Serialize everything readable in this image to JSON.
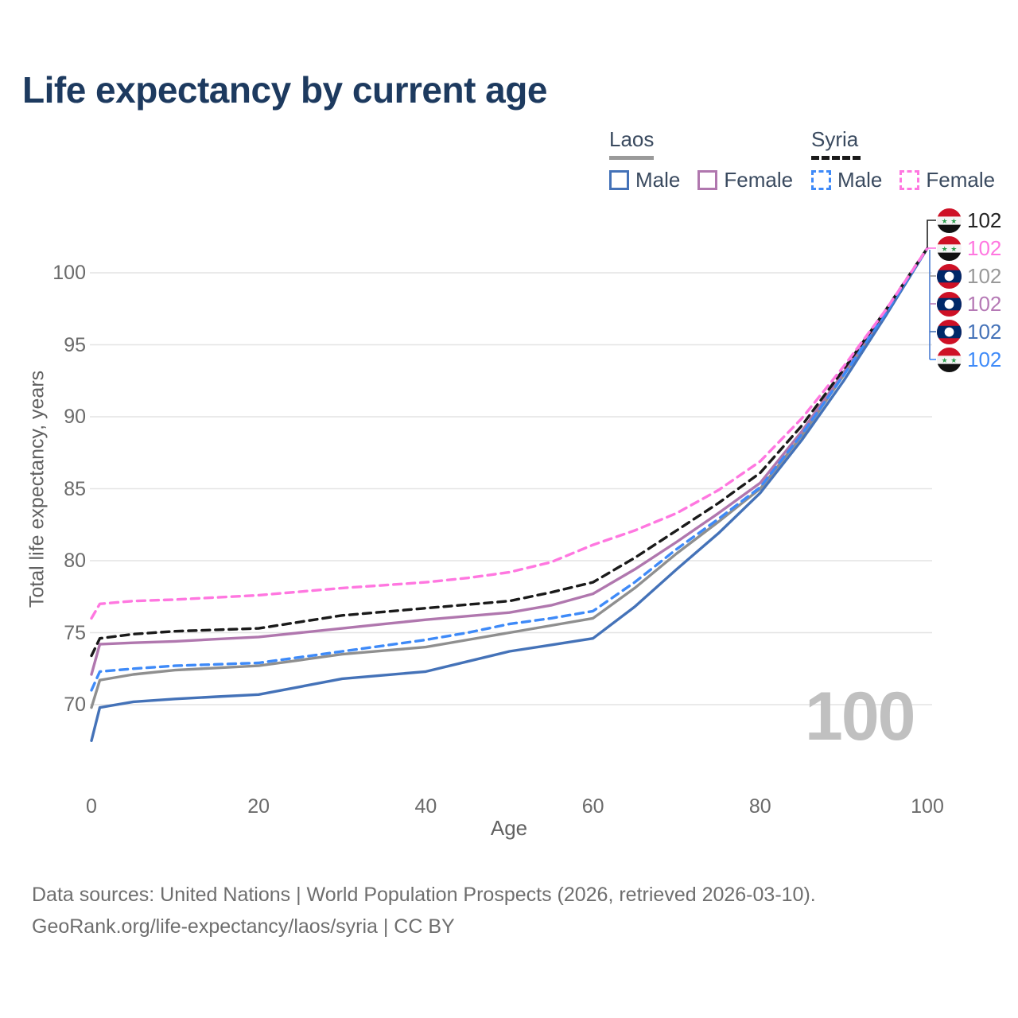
{
  "header": {
    "title": "Life expectancy by current age"
  },
  "legend": {
    "laos": {
      "label": "Laos",
      "male_label": "Male",
      "female_label": "Female"
    },
    "syria": {
      "label": "Syria",
      "male_label": "Male",
      "female_label": "Female"
    }
  },
  "plot": {
    "watermark": "100",
    "y_axis_label": "Total life expectancy, years",
    "x_axis_label": "Age"
  },
  "footer": {
    "line1": "Data sources: United Nations | World Population Prospects (2026, retrieved 2026-03-10).",
    "line2": "GeoRank.org/life-expectancy/laos/syria | CC BY"
  },
  "chart_data": {
    "type": "line",
    "title": "Life expectancy by current age",
    "xlabel": "Age",
    "ylabel": "Total life expectancy, years",
    "xlim": [
      0,
      100
    ],
    "ylim": [
      67,
      103
    ],
    "x_ticks": [
      0,
      20,
      40,
      60,
      80,
      100
    ],
    "y_ticks": [
      70,
      75,
      80,
      85,
      90,
      95,
      100
    ],
    "grid": "horizontal-only",
    "hovered_age": "100",
    "ages": [
      0,
      1,
      5,
      10,
      15,
      20,
      25,
      30,
      35,
      40,
      45,
      50,
      55,
      60,
      65,
      70,
      75,
      80,
      85,
      90,
      95,
      100
    ],
    "series": [
      {
        "id": "laos-male",
        "country": "Laos",
        "sex": "Male",
        "color": "#4472b8",
        "dash": "solid",
        "values": [
          67.5,
          69.8,
          70.2,
          70.4,
          70.55,
          70.7,
          71.25,
          71.8,
          72.05,
          72.3,
          73.0,
          73.7,
          74.15,
          74.6,
          76.8,
          79.4,
          81.9,
          84.7,
          88.4,
          92.5,
          97.0,
          101.7
        ]
      },
      {
        "id": "laos-female",
        "country": "Laos",
        "sex": "Female",
        "color": "#b077ae",
        "dash": "solid",
        "values": [
          72.1,
          74.2,
          74.3,
          74.4,
          74.55,
          74.7,
          75.0,
          75.3,
          75.6,
          75.9,
          76.15,
          76.4,
          76.9,
          77.7,
          79.4,
          81.3,
          83.3,
          85.4,
          89.0,
          93.1,
          97.3,
          101.7
        ]
      },
      {
        "id": "laos-total",
        "country": "Laos",
        "sex": "Both",
        "color": "#8f8f8f",
        "dash": "solid",
        "values": [
          69.8,
          71.7,
          72.1,
          72.4,
          72.55,
          72.7,
          73.1,
          73.5,
          73.75,
          74.0,
          74.5,
          75.0,
          75.5,
          76.0,
          78.1,
          80.5,
          82.7,
          85.0,
          88.7,
          92.9,
          97.2,
          101.7
        ]
      },
      {
        "id": "syria-male",
        "country": "Syria",
        "sex": "Male",
        "color": "#3e8af8",
        "dash": "dashed",
        "values": [
          71.0,
          72.3,
          72.5,
          72.7,
          72.8,
          72.9,
          73.3,
          73.7,
          74.1,
          74.5,
          75.0,
          75.6,
          76.0,
          76.5,
          78.5,
          80.8,
          82.9,
          85.1,
          88.8,
          92.9,
          97.2,
          101.7
        ]
      },
      {
        "id": "syria-female",
        "country": "Syria",
        "sex": "Female",
        "color": "#ff77e0",
        "dash": "dashed",
        "values": [
          76.0,
          77.0,
          77.2,
          77.3,
          77.45,
          77.6,
          77.85,
          78.1,
          78.3,
          78.5,
          78.8,
          79.2,
          79.9,
          81.1,
          82.1,
          83.3,
          84.9,
          86.9,
          89.9,
          93.5,
          97.4,
          101.7
        ]
      },
      {
        "id": "syria-total",
        "country": "Syria",
        "sex": "Both",
        "color": "#1a1a1a",
        "dash": "dashed",
        "values": [
          73.4,
          74.6,
          74.9,
          75.1,
          75.2,
          75.3,
          75.75,
          76.2,
          76.45,
          76.7,
          76.95,
          77.2,
          77.8,
          78.5,
          80.2,
          82.1,
          84.0,
          86.1,
          89.4,
          93.3,
          97.4,
          101.7
        ]
      }
    ],
    "endpoint_labels": [
      {
        "series_id": "syria-total",
        "flag": "syria",
        "value": "102",
        "color": "#222222"
      },
      {
        "series_id": "syria-female",
        "flag": "syria",
        "value": "102",
        "color": "#ff77e0"
      },
      {
        "series_id": "laos-total",
        "flag": "laos",
        "value": "102",
        "color": "#999999"
      },
      {
        "series_id": "laos-female",
        "flag": "laos",
        "value": "102",
        "color": "#b579b5"
      },
      {
        "series_id": "laos-male",
        "flag": "laos",
        "value": "102",
        "color": "#4472b8"
      },
      {
        "series_id": "syria-male",
        "flag": "syria",
        "value": "102",
        "color": "#3e8af8"
      }
    ]
  }
}
